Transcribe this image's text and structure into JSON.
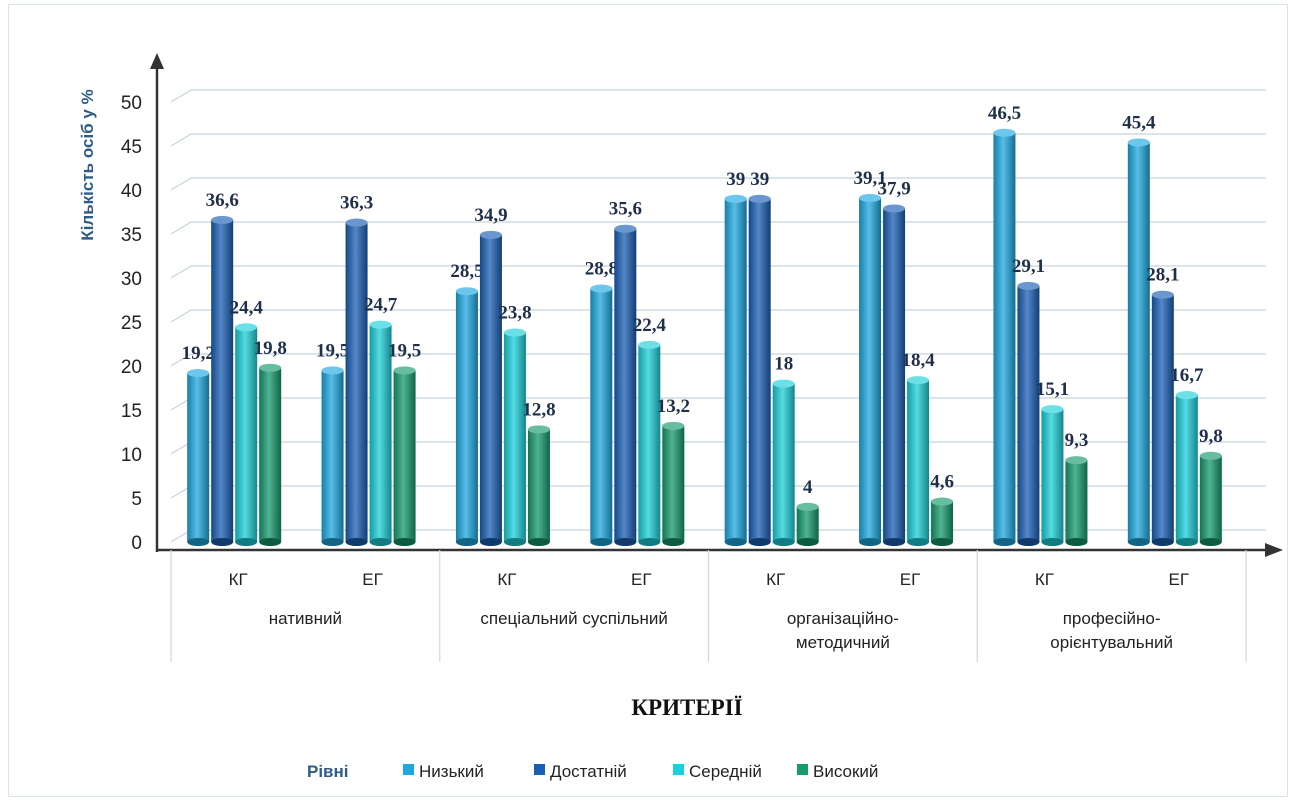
{
  "chart_data": {
    "type": "bar",
    "title": "",
    "ylabel": "Кількість осіб у %",
    "xlabel": "КРИТЕРІЇ",
    "ylim": [
      0,
      50
    ],
    "yticks": [
      0,
      5,
      10,
      15,
      20,
      25,
      30,
      35,
      40,
      45,
      50
    ],
    "grid": true,
    "legend_position": "bottom",
    "legend_title": "Рівні",
    "groups": [
      "нативний",
      "спеціальний суспільний",
      "організаційно-методичний",
      "професійно-орієнтувальний"
    ],
    "group_label_lines": [
      [
        "нативний"
      ],
      [
        "спеціальний суспільний"
      ],
      [
        "організаційно-",
        "методичний"
      ],
      [
        "професійно-",
        "орієнтувальний"
      ]
    ],
    "categories": [
      "КГ",
      "ЕГ",
      "КГ",
      "ЕГ",
      "КГ",
      "ЕГ",
      "КГ",
      "ЕГ"
    ],
    "series": [
      {
        "name": "Низький",
        "color": "#1fa8e0",
        "values": [
          19.2,
          19.5,
          28.5,
          28.8,
          39,
          39.1,
          46.5,
          45.4
        ]
      },
      {
        "name": "Достатній",
        "color": "#1a5fb4",
        "values": [
          36.6,
          36.3,
          34.9,
          35.6,
          39,
          37.9,
          29.1,
          28.1
        ]
      },
      {
        "name": "Середній",
        "color": "#1ccfd8",
        "values": [
          24.4,
          24.7,
          23.8,
          22.4,
          18,
          18.4,
          15.1,
          16.7
        ]
      },
      {
        "name": "Високий",
        "color": "#169a6e",
        "values": [
          19.8,
          19.5,
          12.8,
          13.2,
          4,
          4.6,
          9.3,
          9.8
        ]
      }
    ],
    "data_labels": [
      [
        "19,2",
        "19,5",
        "28,5",
        "28,8",
        "39",
        "39,1",
        "46,5",
        "45,4"
      ],
      [
        "36,6",
        "36,3",
        "34,9",
        "35,6",
        "39",
        "37,9",
        "29,1",
        "28,1"
      ],
      [
        "24,4",
        "24,7",
        "23,8",
        "22,4",
        "18",
        "18,4",
        "15,1",
        "16,7"
      ],
      [
        "19,8",
        "19,5",
        "12,8",
        "13,2",
        "4",
        "4,6",
        "9,3",
        "9,8"
      ]
    ]
  }
}
